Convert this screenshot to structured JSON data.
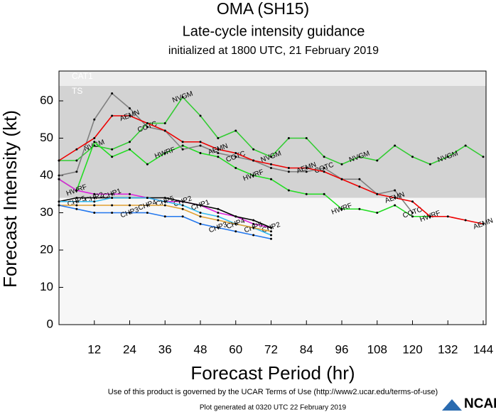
{
  "chart_data": {
    "type": "line",
    "title": "OMA (SH15)",
    "subtitle": "Late-cycle intensity guidance",
    "initialized": "initialized at 1800 UTC, 21 February 2019",
    "x_label": "Forecast Period (hr)",
    "y_label": "Forecast Intensity (kt)",
    "footer": "Use of this product is governed by the UCAR Terms of Use (http://www2.ucar.edu/terms-of-use)",
    "generated": "Plot generated at 0320 UTC  22 February 2019",
    "logo": "NCAR",
    "bands": [
      {
        "label": "CAT1",
        "from": 64,
        "to": 68,
        "color": "#ececec"
      },
      {
        "label": "TS",
        "from": 34,
        "to": 64,
        "color": "#d3d3d3"
      }
    ],
    "xlim": [
      0,
      144
    ],
    "ylim": [
      0,
      68
    ],
    "xticks": [
      12,
      24,
      36,
      48,
      60,
      72,
      84,
      96,
      108,
      120,
      132,
      144
    ],
    "yticks": [
      0,
      10,
      20,
      30,
      40,
      50,
      60
    ],
    "x": [
      0,
      6,
      12,
      18,
      24,
      30,
      36,
      42,
      48,
      54,
      60,
      66,
      72,
      78,
      84,
      90,
      96,
      102,
      108,
      114,
      120,
      126,
      132,
      138,
      144
    ],
    "series": [
      {
        "name": "NVGM",
        "color": "#33cc33",
        "values": [
          44,
          44,
          48,
          47,
          49,
          54,
          54,
          61,
          56,
          50,
          52,
          47,
          45,
          50,
          50,
          45,
          43,
          45,
          44,
          48,
          45,
          43,
          45,
          48,
          45
        ]
      },
      {
        "name": "HWRF",
        "color": "#22dd22",
        "values": [
          39,
          36,
          49,
          45,
          47,
          43,
          46,
          48,
          46,
          45,
          42,
          40,
          39,
          36,
          35,
          35,
          31,
          31,
          30,
          32,
          29,
          29,
          null,
          null,
          null
        ]
      },
      {
        "name": "COTC",
        "color": "#808080",
        "values": [
          40,
          41,
          55,
          62,
          58,
          53,
          52,
          47,
          48,
          46,
          45,
          44,
          42,
          41,
          41,
          42,
          39,
          39,
          35,
          36,
          30,
          null,
          null,
          null,
          null
        ]
      },
      {
        "name": "AEMN",
        "color": "#ee0000",
        "values": [
          44,
          47,
          50,
          56,
          56,
          54,
          52,
          49,
          49,
          47,
          46,
          44,
          43,
          42,
          42,
          41,
          39,
          37,
          35,
          34,
          33,
          29,
          29,
          28,
          27
        ]
      },
      {
        "name": "CHP1",
        "color": "#dd22dd",
        "values": [
          39,
          36,
          35,
          35,
          35,
          34,
          33,
          33,
          32,
          30,
          29,
          27,
          26,
          null,
          null,
          null,
          null,
          null,
          null,
          null,
          null,
          null,
          null,
          null,
          null
        ]
      },
      {
        "name": "CHP2",
        "color": "#000000",
        "values": [
          33,
          34,
          34,
          34,
          34,
          34,
          34,
          33,
          32,
          31,
          29,
          28,
          26,
          null,
          null,
          null,
          null,
          null,
          null,
          null,
          null,
          null,
          null,
          null,
          null
        ]
      },
      {
        "name": "CHP5",
        "color": "#33bbee",
        "values": [
          33,
          33,
          33,
          34,
          34,
          34,
          33,
          32,
          30,
          29,
          27,
          26,
          24,
          null,
          null,
          null,
          null,
          null,
          null,
          null,
          null,
          null,
          null,
          null,
          null
        ]
      },
      {
        "name": "CHP4",
        "color": "#e0a030",
        "values": [
          32,
          32,
          32,
          32,
          32,
          32,
          32,
          31,
          29,
          28,
          27,
          26,
          25,
          null,
          null,
          null,
          null,
          null,
          null,
          null,
          null,
          null,
          null,
          null,
          null
        ]
      },
      {
        "name": "CHP3",
        "color": "#2277ee",
        "values": [
          32,
          31,
          30,
          30,
          30,
          30,
          29,
          29,
          27,
          26,
          25,
          24,
          23,
          null,
          null,
          null,
          null,
          null,
          null,
          null,
          null,
          null,
          null,
          null,
          null
        ]
      }
    ]
  }
}
